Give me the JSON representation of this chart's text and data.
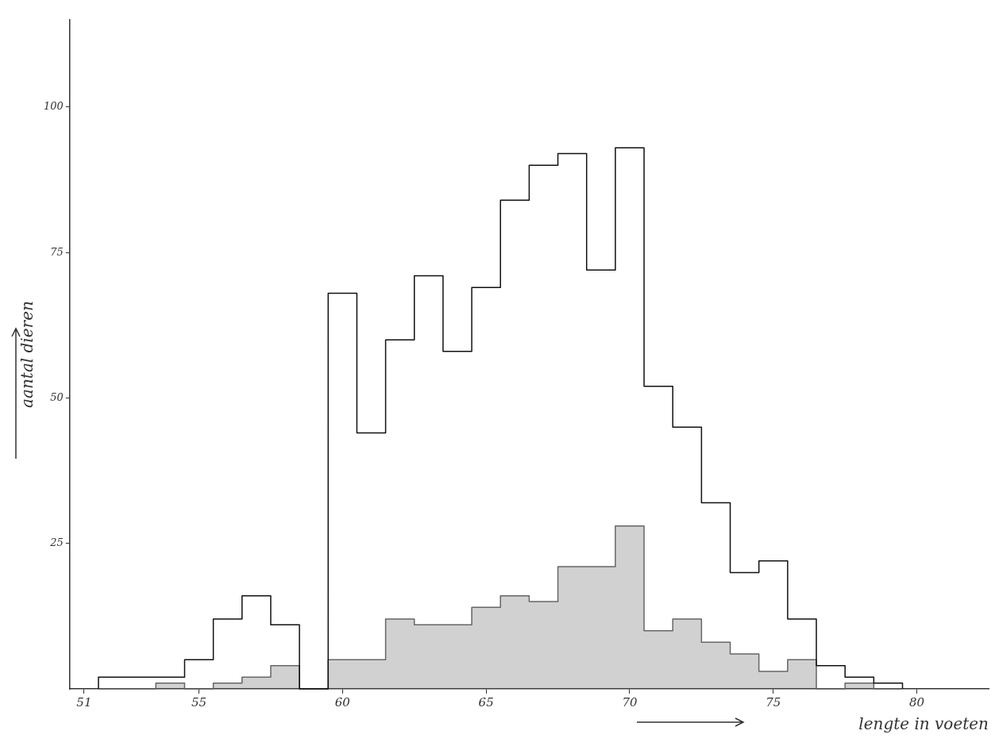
{
  "chart_data": {
    "type": "histogram",
    "xlabel": "lengte in voeten",
    "ylabel": "aantal dieren",
    "bins": [
      51.5,
      53.5,
      54.5,
      55.5,
      56.5,
      57.5,
      58.5,
      59.5,
      60.5,
      61.5,
      62.5,
      63.5,
      64.5,
      65.5,
      66.5,
      67.5,
      68.5,
      69.5,
      70.5,
      71.5,
      72.5,
      73.5,
      74.5,
      75.5,
      76.5,
      77.5,
      78.5,
      79.5
    ],
    "series": [
      {
        "color": "#111111",
        "values": [
          2,
          2,
          5,
          12,
          16,
          11,
          0,
          68,
          44,
          60,
          71,
          58,
          69,
          84,
          90,
          92,
          72,
          93,
          52,
          45,
          32,
          20,
          22,
          12,
          4,
          2,
          1
        ]
      },
      {
        "color": "#666666",
        "values": [
          0,
          1,
          0,
          1,
          2,
          4,
          0,
          5,
          5,
          12,
          11,
          11,
          14,
          16,
          15,
          21,
          21,
          28,
          10,
          12,
          8,
          6,
          3,
          5,
          0,
          1,
          0
        ]
      }
    ],
    "xlim": [
      50.5,
      82.5
    ],
    "xticks": [
      51,
      55,
      60,
      65,
      70,
      75,
      80
    ],
    "ylim": [
      0,
      115
    ],
    "yticks": [
      25,
      50,
      75,
      100
    ],
    "grid": false,
    "legend": false
  }
}
